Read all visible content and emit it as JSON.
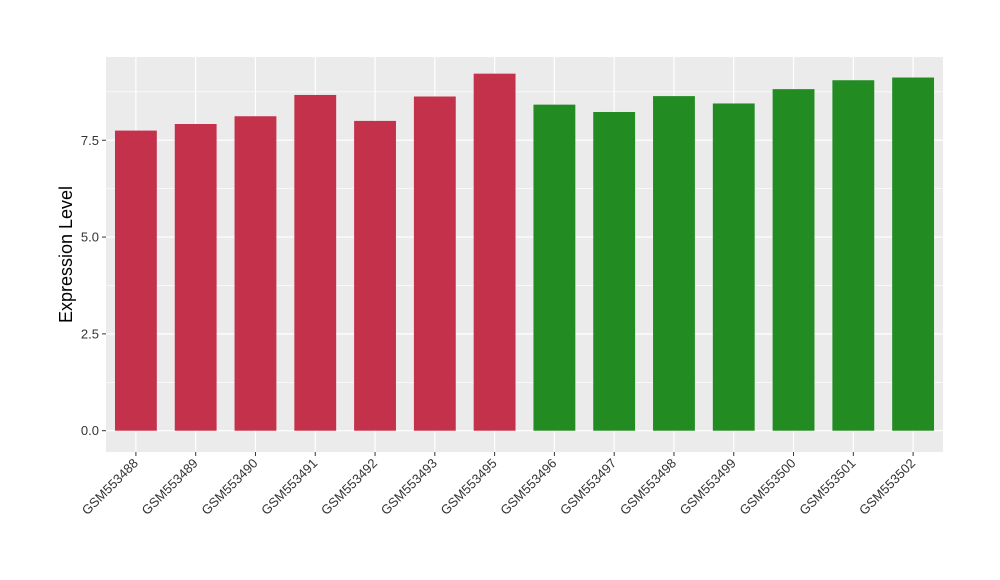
{
  "chart_data": {
    "type": "bar",
    "title": "",
    "xlabel": "",
    "ylabel": "Expression Level",
    "ylim": [
      -0.55,
      9.65
    ],
    "yticks": [
      0.0,
      2.5,
      5.0,
      7.5
    ],
    "ytick_labels": [
      "0.0",
      "2.5",
      "5.0",
      "7.5"
    ],
    "grid": true,
    "legend": "none",
    "colors": {
      "group_a": "#c4314b",
      "group_b": "#228b22",
      "panel": "#ebebeb",
      "gridline": "#ffffff"
    },
    "categories": [
      "GSM553488",
      "GSM553489",
      "GSM553490",
      "GSM553491",
      "GSM553492",
      "GSM553493",
      "GSM553495",
      "GSM553496",
      "GSM553497",
      "GSM553498",
      "GSM553499",
      "GSM553500",
      "GSM553501",
      "GSM553502"
    ],
    "values": [
      7.75,
      7.92,
      8.12,
      8.67,
      8.0,
      8.63,
      9.22,
      8.42,
      8.23,
      8.64,
      8.45,
      8.82,
      9.05,
      9.12
    ],
    "bar_groups": [
      "group_a",
      "group_a",
      "group_a",
      "group_a",
      "group_a",
      "group_a",
      "group_a",
      "group_b",
      "group_b",
      "group_b",
      "group_b",
      "group_b",
      "group_b",
      "group_b"
    ]
  }
}
